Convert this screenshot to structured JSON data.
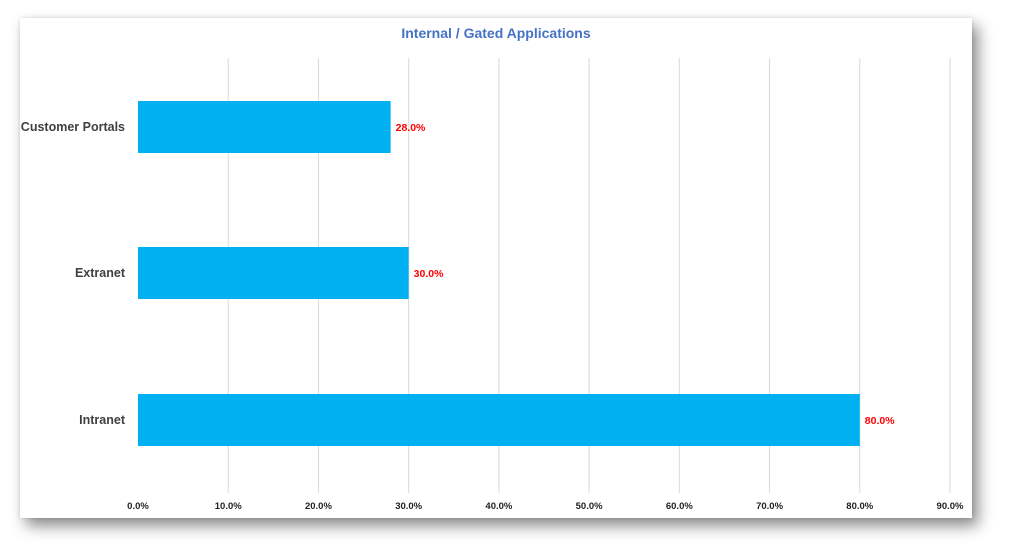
{
  "chart_data": {
    "type": "bar",
    "orientation": "horizontal",
    "title": "Internal / Gated Applications",
    "categories": [
      "Customer Portals",
      "Extranet",
      "Intranet"
    ],
    "values": [
      28.0,
      30.0,
      80.0
    ],
    "value_labels": [
      "28.0%",
      "30.0%",
      "80.0%"
    ],
    "xlim": [
      0,
      90
    ],
    "x_ticks": [
      0,
      10,
      20,
      30,
      40,
      50,
      60,
      70,
      80,
      90
    ],
    "x_tick_labels": [
      "0.0%",
      "10.0%",
      "20.0%",
      "30.0%",
      "40.0%",
      "50.0%",
      "60.0%",
      "70.0%",
      "80.0%",
      "90.0%"
    ],
    "xlabel": "",
    "ylabel": "",
    "grid": "vertical",
    "legend": "none",
    "colors": {
      "bar": "#00B0F0",
      "title": "#4472C4",
      "data_label": "#FF0000",
      "grid": "#d9d9d9"
    }
  }
}
